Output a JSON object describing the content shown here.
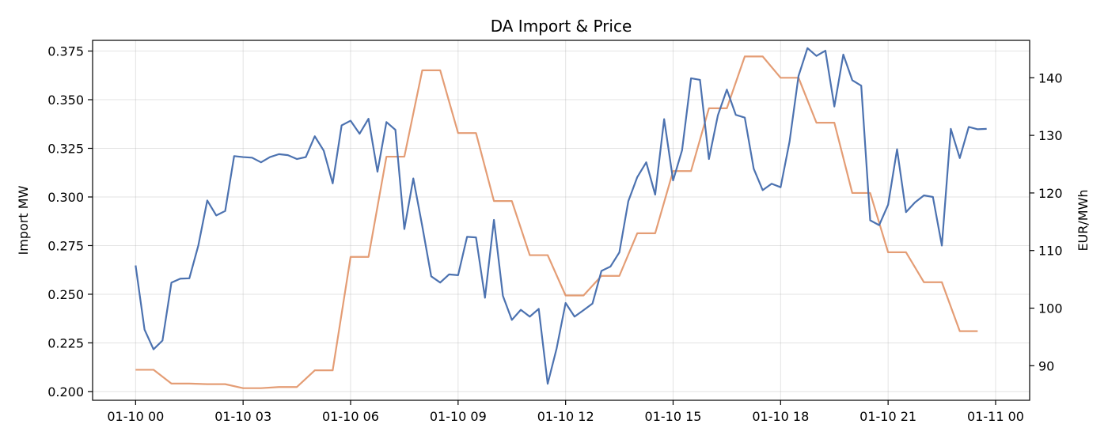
{
  "chart_data": {
    "type": "line",
    "title": "DA Import & Price",
    "xlabel": "",
    "ylabel": "Import MW",
    "y2label": "EUR/MWh",
    "x_tick_labels": [
      "01-10 00",
      "01-10 03",
      "01-10 06",
      "01-10 09",
      "01-10 12",
      "01-10 15",
      "01-10 18",
      "01-10 21",
      "01-11 00"
    ],
    "y_ticks": [
      0.2,
      0.225,
      0.25,
      0.275,
      0.3,
      0.325,
      0.35,
      0.375
    ],
    "y_tick_labels": [
      "0.200",
      "0.225",
      "0.250",
      "0.275",
      "0.300",
      "0.325",
      "0.350",
      "0.375"
    ],
    "y2_ticks": [
      90,
      100,
      110,
      120,
      130,
      140
    ],
    "y2_tick_labels": [
      "90",
      "100",
      "110",
      "120",
      "130",
      "140"
    ],
    "xlim_hours": [
      -1.2,
      24.95
    ],
    "ylim": [
      0.1955,
      0.3805
    ],
    "y2lim": [
      84,
      146.5
    ],
    "grid": true,
    "colors": {
      "import": "#4c72b0",
      "price": "#dd8452"
    },
    "series": [
      {
        "axis": "left",
        "step_minutes": 15,
        "values": [
          0.2648,
          0.2318,
          0.2217,
          0.2262,
          0.256,
          0.258,
          0.2582,
          0.275,
          0.2982,
          0.2905,
          0.2928,
          0.321,
          0.3205,
          0.3202,
          0.3178,
          0.3205,
          0.322,
          0.3215,
          0.3195,
          0.3205,
          0.3312,
          0.3238,
          0.307,
          0.3368,
          0.3392,
          0.3325,
          0.3402,
          0.313,
          0.3385,
          0.3345,
          0.2835,
          0.3095,
          0.285,
          0.2592,
          0.256,
          0.2602,
          0.2598,
          0.2795,
          0.2792,
          0.2482,
          0.2882,
          0.2492,
          0.2368,
          0.242,
          0.2385,
          0.2425,
          0.204,
          0.2222,
          0.2455,
          0.2385,
          0.2418,
          0.2452,
          0.262,
          0.2642,
          0.2715,
          0.2978,
          0.3102,
          0.3178,
          0.3012,
          0.34,
          0.3085,
          0.324,
          0.361,
          0.3602,
          0.3195,
          0.342,
          0.3552,
          0.3422,
          0.3408,
          0.3145,
          0.3035,
          0.3068,
          0.305,
          0.3285,
          0.3622,
          0.3765,
          0.3725,
          0.3752,
          0.3465,
          0.3732,
          0.36,
          0.3572,
          0.288,
          0.2855,
          0.296,
          0.3245,
          0.2922,
          0.2972,
          0.3008,
          0.3,
          0.275,
          0.335,
          0.32,
          0.336,
          0.3348,
          0.335
        ]
      },
      {
        "axis": "right",
        "step_hours": 1,
        "values": [
          89.3,
          89.3,
          86.9,
          86.9,
          86.8,
          86.8,
          86.1,
          86.1,
          86.3,
          86.3,
          89.2,
          89.2,
          108.9,
          108.9,
          126.3,
          126.3,
          141.3,
          141.3,
          130.4,
          130.4,
          118.6,
          118.6,
          109.2,
          109.2,
          102.2,
          102.2,
          105.6,
          105.6,
          113.0,
          113.0,
          123.8,
          123.8,
          134.7,
          134.7,
          143.7,
          143.7,
          140.0,
          140.0,
          132.2,
          132.2,
          120.0,
          120.0,
          109.7,
          109.7,
          104.5,
          104.5,
          96.0,
          96.0
        ]
      }
    ]
  }
}
